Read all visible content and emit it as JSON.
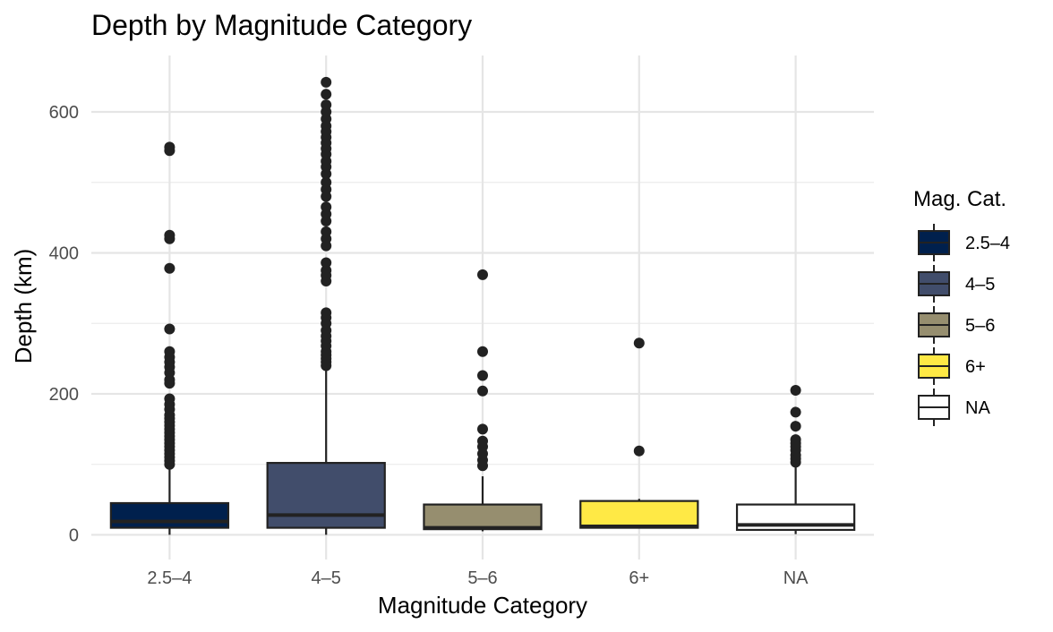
{
  "chart_data": {
    "type": "boxplot",
    "title": "Depth by Magnitude Category",
    "xlabel": "Magnitude Category",
    "ylabel": "Depth (km)",
    "ylim": [
      -35,
      680
    ],
    "yticks": [
      0,
      200,
      400,
      600
    ],
    "grid": true,
    "legend": {
      "title": "Mag. Cat.",
      "position": "right"
    },
    "categories": [
      "2.5–4",
      "4–5",
      "5–6",
      "6+",
      "NA"
    ],
    "boxes": [
      {
        "category": "2.5–4",
        "fill": "#00204d",
        "min": 0,
        "q1": 10,
        "median": 19,
        "q3": 45,
        "max": 96,
        "outliers": [
          100,
          105,
          110,
          115,
          120,
          125,
          130,
          135,
          140,
          145,
          150,
          155,
          160,
          165,
          170,
          178,
          185,
          193,
          215,
          220,
          230,
          238,
          245,
          252,
          260,
          292,
          378,
          420,
          425,
          545,
          550
        ]
      },
      {
        "category": "4–5",
        "fill": "#414d6b",
        "min": 0,
        "q1": 10,
        "median": 28,
        "q3": 102,
        "max": 235,
        "outliers": [
          240,
          245,
          250,
          255,
          260,
          268,
          275,
          282,
          290,
          300,
          308,
          315,
          360,
          368,
          375,
          386,
          410,
          420,
          430,
          445,
          455,
          465,
          480,
          490,
          500,
          512,
          522,
          530,
          540,
          548,
          556,
          564,
          572,
          580,
          590,
          600,
          610,
          625,
          642
        ]
      },
      {
        "category": "5–6",
        "fill": "#968e6f",
        "min": 5,
        "q1": 8,
        "median": 10,
        "q3": 43,
        "max": 83,
        "outliers": [
          98,
          106,
          115,
          125,
          133,
          150,
          204,
          226,
          260,
          369
        ]
      },
      {
        "category": "6+",
        "fill": "#ffe945",
        "min": 9,
        "q1": 10,
        "median": 12,
        "q3": 48,
        "max": 51,
        "outliers": [
          119,
          272
        ]
      },
      {
        "category": "NA",
        "fill": "#ffffff",
        "min": 1,
        "q1": 7,
        "median": 14,
        "q3": 43,
        "max": 99,
        "outliers": [
          103,
          108,
          113,
          120,
          125,
          130,
          135,
          154,
          174,
          205
        ]
      }
    ]
  }
}
